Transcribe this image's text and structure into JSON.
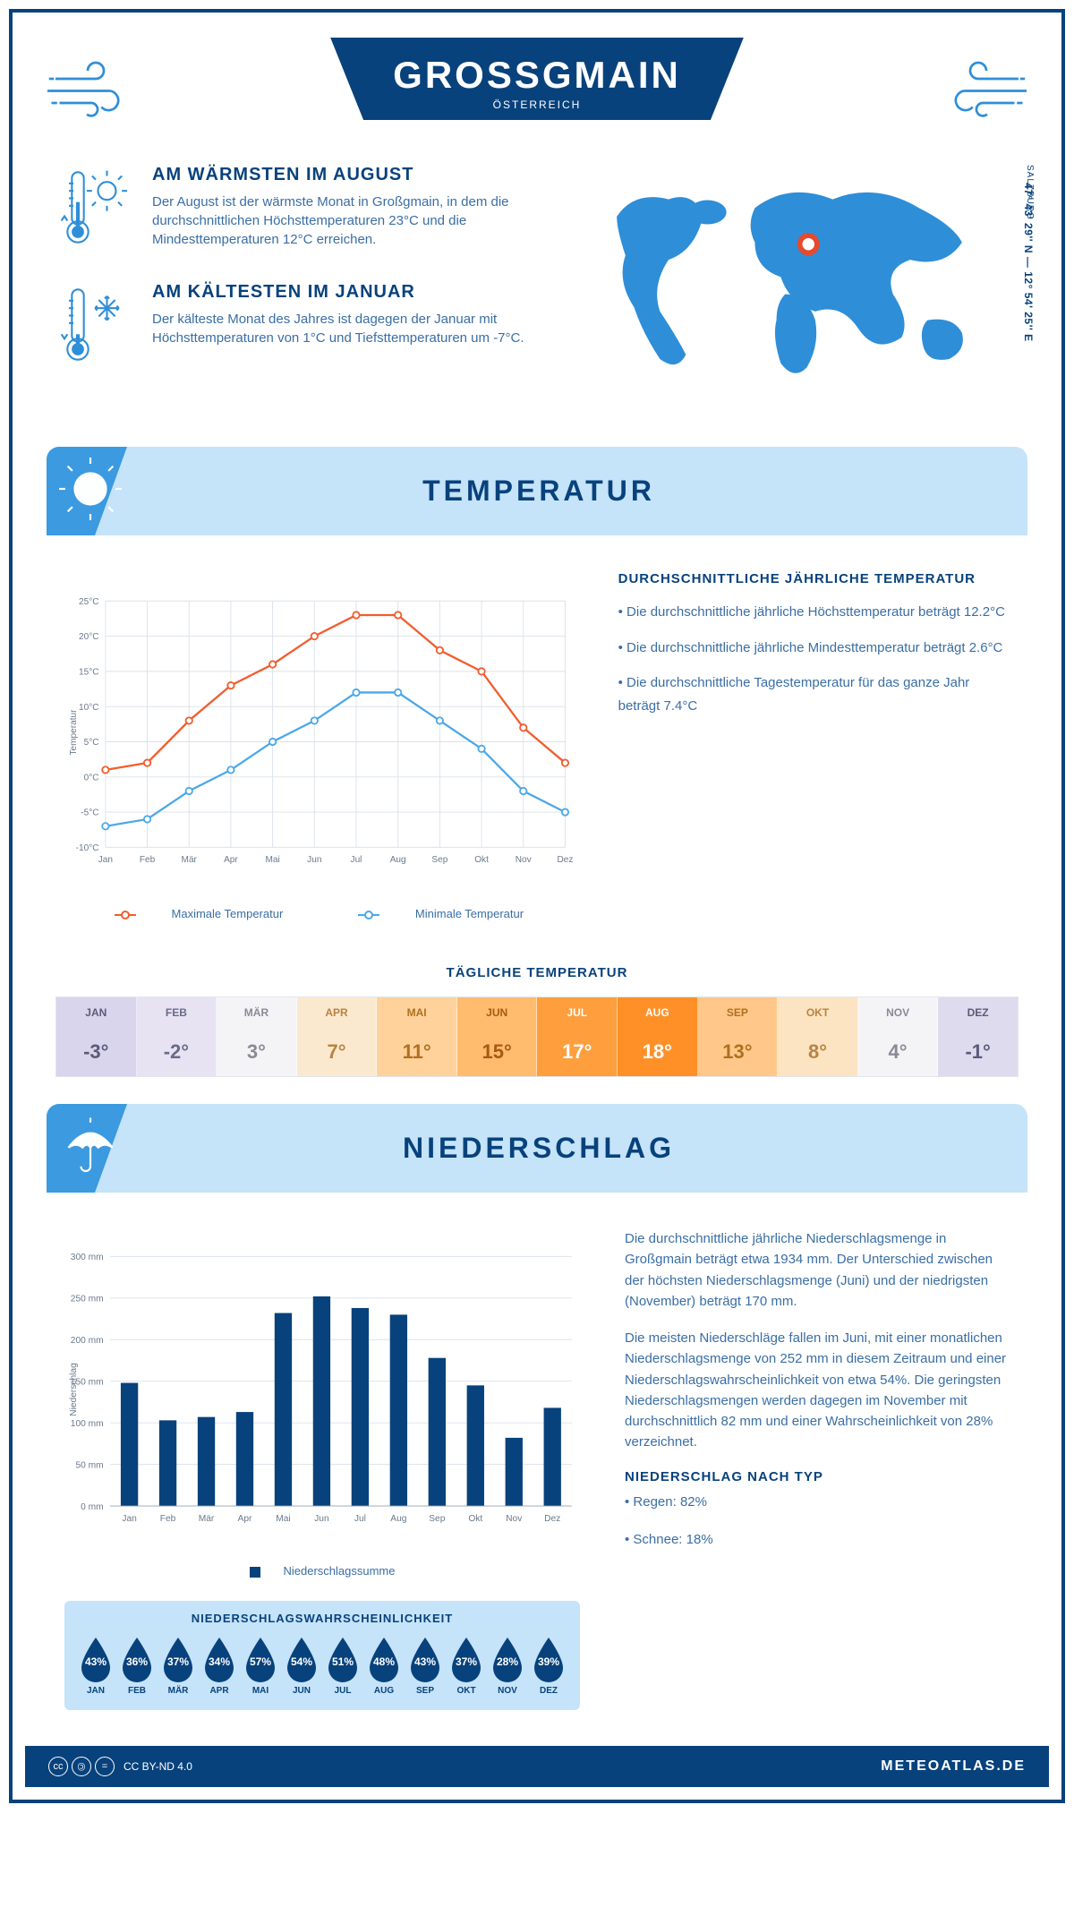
{
  "header": {
    "title": "GROSSGMAIN",
    "country": "ÖSTERREICH"
  },
  "location": {
    "coords": "47° 43' 29'' N — 12° 54' 25'' E",
    "region": "SALZBURG",
    "marker_color": "#e54a2e"
  },
  "colors": {
    "primary": "#08427c",
    "accent": "#2e8ed8",
    "header_bg": "#c5e3f9",
    "corner": "#3b9ae0",
    "max_line": "#f25c2e",
    "min_line": "#4ba8e8",
    "bar": "#08427c",
    "grid": "#dbe2ea"
  },
  "warmest": {
    "title": "AM WÄRMSTEN IM AUGUST",
    "text": "Der August ist der wärmste Monat in Großgmain, in dem die durchschnittlichen Höchsttemperaturen 23°C und die Mindesttemperaturen 12°C erreichen."
  },
  "coldest": {
    "title": "AM KÄLTESTEN IM JANUAR",
    "text": "Der kälteste Monat des Jahres ist dagegen der Januar mit Höchsttemperaturen von 1°C und Tiefsttemperaturen um -7°C."
  },
  "temperature": {
    "section_title": "TEMPERATUR",
    "months": [
      "Jan",
      "Feb",
      "Mär",
      "Apr",
      "Mai",
      "Jun",
      "Jul",
      "Aug",
      "Sep",
      "Okt",
      "Nov",
      "Dez"
    ],
    "max": [
      1,
      2,
      8,
      13,
      16,
      20,
      23,
      23,
      18,
      15,
      7,
      2
    ],
    "min": [
      -7,
      -6,
      -2,
      1,
      5,
      8,
      12,
      12,
      8,
      4,
      -2,
      -5
    ],
    "ylim": [
      -10,
      25
    ],
    "ytick_step": 5,
    "ylabel": "Temperatur",
    "legend_max": "Maximale Temperatur",
    "legend_min": "Minimale Temperatur",
    "info_heading": "DURCHSCHNITTLICHE JÄHRLICHE TEMPERATUR",
    "bullets": [
      "• Die durchschnittliche jährliche Höchsttemperatur beträgt 12.2°C",
      "• Die durchschnittliche jährliche Mindesttemperatur beträgt 2.6°C",
      "• Die durchschnittliche Tagestemperatur für das ganze Jahr beträgt 7.4°C"
    ]
  },
  "daily": {
    "title": "TÄGLICHE TEMPERATUR",
    "months": [
      "JAN",
      "FEB",
      "MÄR",
      "APR",
      "MAI",
      "JUN",
      "JUL",
      "AUG",
      "SEP",
      "OKT",
      "NOV",
      "DEZ"
    ],
    "values": [
      "-3°",
      "-2°",
      "3°",
      "7°",
      "11°",
      "15°",
      "17°",
      "18°",
      "13°",
      "8°",
      "4°",
      "-1°"
    ],
    "cell_colors": [
      "#d9d5ec",
      "#e7e3f2",
      "#f4f4f7",
      "#fbe9cf",
      "#ffd29b",
      "#ffbb6e",
      "#ff9e3d",
      "#ff9028",
      "#ffc88a",
      "#fce3c2",
      "#f4f4f7",
      "#dfdbee"
    ],
    "text_colors": [
      "#5a5a7a",
      "#6a6a8a",
      "#8a8a96",
      "#b88440",
      "#b07020",
      "#a85a10",
      "#ffffff",
      "#ffffff",
      "#b07020",
      "#b88440",
      "#8a8a96",
      "#5a5a7a"
    ]
  },
  "precip": {
    "section_title": "NIEDERSCHLAG",
    "months": [
      "Jan",
      "Feb",
      "Mär",
      "Apr",
      "Mai",
      "Jun",
      "Jul",
      "Aug",
      "Sep",
      "Okt",
      "Nov",
      "Dez"
    ],
    "values": [
      148,
      103,
      107,
      113,
      232,
      252,
      238,
      230,
      178,
      145,
      82,
      118
    ],
    "ylim": [
      0,
      300
    ],
    "ytick_step": 50,
    "ylabel": "Niederschlag",
    "legend": "Niederschlagssumme",
    "text1": "Die durchschnittliche jährliche Niederschlagsmenge in Großgmain beträgt etwa 1934 mm. Der Unterschied zwischen der höchsten Niederschlagsmenge (Juni) und der niedrigsten (November) beträgt 170 mm.",
    "text2": "Die meisten Niederschläge fallen im Juni, mit einer monatlichen Niederschlagsmenge von 252 mm in diesem Zeitraum und einer Niederschlagswahrscheinlichkeit von etwa 54%. Die geringsten Niederschlagsmengen werden dagegen im November mit durchschnittlich 82 mm und einer Wahrscheinlichkeit von 28% verzeichnet.",
    "type_heading": "NIEDERSCHLAG NACH TYP",
    "type_bullets": [
      "• Regen: 82%",
      "• Schnee: 18%"
    ]
  },
  "probability": {
    "title": "NIEDERSCHLAGSWAHRSCHEINLICHKEIT",
    "months": [
      "JAN",
      "FEB",
      "MÄR",
      "APR",
      "MAI",
      "JUN",
      "JUL",
      "AUG",
      "SEP",
      "OKT",
      "NOV",
      "DEZ"
    ],
    "values": [
      "43%",
      "36%",
      "37%",
      "34%",
      "57%",
      "54%",
      "51%",
      "48%",
      "43%",
      "37%",
      "28%",
      "39%"
    ]
  },
  "footer": {
    "license": "CC BY-ND 4.0",
    "site": "METEOATLAS.DE"
  }
}
